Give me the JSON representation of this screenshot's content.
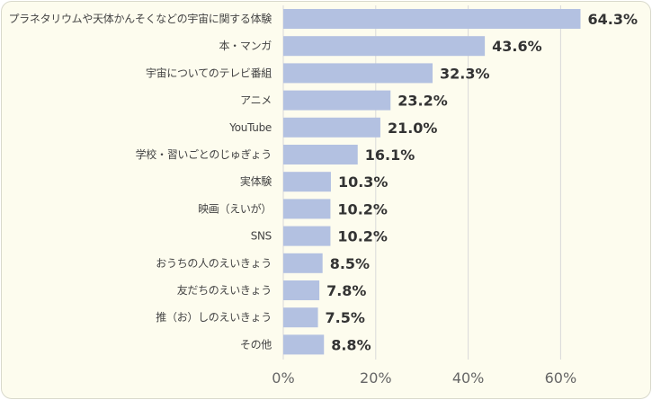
{
  "chart_data": {
    "type": "bar",
    "orientation": "horizontal",
    "categories": [
      "プラネタリウムや天体かんそくなどの宇宙に関する体験",
      "本・マンガ",
      "宇宙についてのテレビ番組",
      "アニメ",
      "YouTube",
      "学校・習いごとのじゅぎょう",
      "実体験",
      "映画（えいが）",
      "SNS",
      "おうちの人のえいきょう",
      "友だちのえいきょう",
      "推（お）しのえいきょう",
      "その他"
    ],
    "values": [
      64.3,
      43.6,
      32.3,
      23.2,
      21.0,
      16.1,
      10.3,
      10.2,
      10.2,
      8.5,
      7.8,
      7.5,
      8.8
    ],
    "value_labels": [
      "64.3%",
      "43.6%",
      "32.3%",
      "23.2%",
      "21.0%",
      "16.1%",
      "10.3%",
      "10.2%",
      "10.2%",
      "8.5%",
      "7.8%",
      "7.5%",
      "8.8%"
    ],
    "xlim": [
      0,
      70
    ],
    "x_ticks": [
      0,
      20,
      40,
      60
    ],
    "x_tick_labels": [
      "0%",
      "20%",
      "40%",
      "60%"
    ],
    "grid": true,
    "colors": {
      "bar": "#b3c1e1",
      "background": "#fdfcee",
      "grid": "#d9d9d9"
    }
  }
}
